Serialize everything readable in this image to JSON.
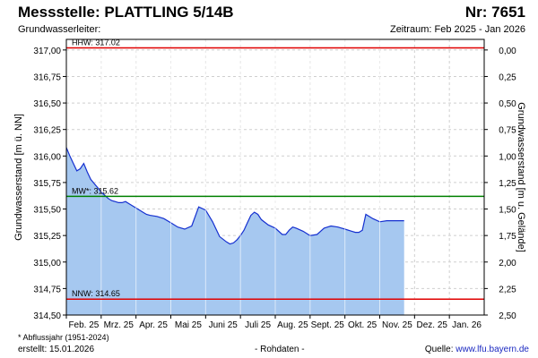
{
  "header": {
    "title": "Messstelle: PLATTLING 5/14B",
    "number": "Nr: 7651",
    "aquifer": "Grundwasserleiter:",
    "period": "Zeitraum: Feb 2025 - Jan 2026"
  },
  "footer": {
    "footnote": "* Abflussjahr (1951-2024)",
    "created": "erstellt:  15.01.2026",
    "raw": "- Rohdaten -",
    "source_prefix": "Quelle: ",
    "source_link": "www.lfu.bayern.de"
  },
  "chart_data": {
    "type": "area",
    "ylabel_left": "Grundwasserstand [m ü. NN]",
    "ylabel_right": "Grundwasserstand [m u. Gelände]",
    "ylim": [
      314.5,
      317.1
    ],
    "yticks_left": [
      "317,00",
      "316,75",
      "316,50",
      "316,25",
      "316,00",
      "315,75",
      "315,50",
      "315,25",
      "315,00",
      "314,75",
      "314,50"
    ],
    "yticks_right": [
      "0,00",
      "0,25",
      "0,50",
      "0,75",
      "1,00",
      "1,25",
      "1,50",
      "1,75",
      "2,00",
      "2,25",
      "2,50"
    ],
    "xticks": [
      "Feb. 25",
      "Mrz. 25",
      "Apr. 25",
      "Mai 25",
      "Juni 25",
      "Juli 25",
      "Aug. 25",
      "Sept. 25",
      "Okt. 25",
      "Nov. 25",
      "Dez. 25",
      "Jan. 26"
    ],
    "reference_lines": [
      {
        "label": "HHW: 317.02",
        "value": 317.02,
        "color": "#e00000"
      },
      {
        "label": "MW*: 315.62",
        "value": 315.62,
        "color": "#008000"
      },
      {
        "label": "NNW: 314.65",
        "value": 314.65,
        "color": "#e00000"
      }
    ],
    "series": [
      {
        "line_color": "#1530d0",
        "fill_color": "#a6c8f0",
        "x": [
          0,
          0.1,
          0.2,
          0.3,
          0.4,
          0.5,
          0.6,
          0.7,
          0.8,
          0.9,
          1.0,
          1.1,
          1.2,
          1.3,
          1.4,
          1.5,
          1.6,
          1.7,
          1.8,
          1.9,
          2.0,
          2.1,
          2.2,
          2.3,
          2.4,
          2.6,
          2.8,
          3.0,
          3.2,
          3.4,
          3.6,
          3.8,
          4.0,
          4.2,
          4.4,
          4.6,
          4.7,
          4.8,
          4.9,
          5.0,
          5.1,
          5.2,
          5.3,
          5.4,
          5.5,
          5.6,
          5.8,
          6.0,
          6.2,
          6.3,
          6.4,
          6.5,
          6.6,
          6.8,
          7.0,
          7.2,
          7.3,
          7.4,
          7.5,
          7.6,
          7.8,
          8.0,
          8.2,
          8.3,
          8.4,
          8.5,
          8.6,
          8.8,
          9.0,
          9.2,
          9.3,
          9.35,
          9.4,
          9.45,
          9.5,
          9.6,
          9.7
        ],
        "values": [
          316.08,
          316.0,
          315.93,
          315.86,
          315.88,
          315.93,
          315.85,
          315.78,
          315.74,
          315.7,
          315.66,
          315.63,
          315.6,
          315.58,
          315.57,
          315.56,
          315.56,
          315.57,
          315.55,
          315.53,
          315.51,
          315.49,
          315.47,
          315.45,
          315.44,
          315.43,
          315.41,
          315.37,
          315.33,
          315.31,
          315.34,
          315.52,
          315.49,
          315.38,
          315.24,
          315.19,
          315.17,
          315.18,
          315.21,
          315.25,
          315.3,
          315.37,
          315.44,
          315.47,
          315.45,
          315.4,
          315.35,
          315.32,
          315.26,
          315.26,
          315.3,
          315.33,
          315.32,
          315.29,
          315.25,
          315.26,
          315.29,
          315.32,
          315.33,
          315.34,
          315.33,
          315.31,
          315.29,
          315.28,
          315.28,
          315.3,
          315.45,
          315.41,
          315.38,
          315.39,
          315.39,
          315.39,
          315.39,
          315.39,
          315.39,
          315.39,
          315.39
        ]
      }
    ]
  }
}
